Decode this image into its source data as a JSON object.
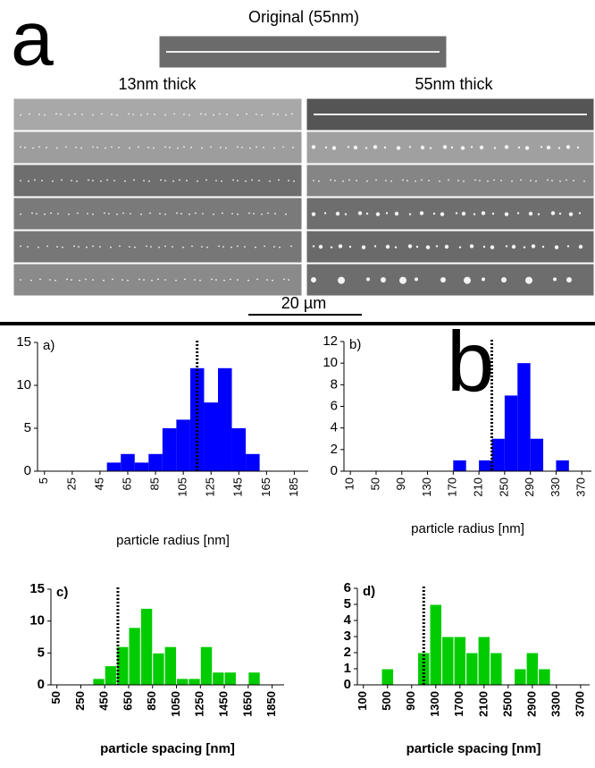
{
  "figure": {
    "label_a": "a",
    "original_title": "Original (55nm)",
    "left_column": "13nm thick",
    "right_column": "55nm thick",
    "scale_bar": "20 µm",
    "label_b": "b"
  },
  "chart_data": [
    {
      "type": "histogram",
      "annotation": "a)",
      "x_label": "particle radius [nm]",
      "color": "#0000ff",
      "bins": [
        50,
        60,
        70,
        80,
        90,
        100,
        110,
        120,
        130,
        140,
        150,
        160
      ],
      "counts": [
        1,
        2,
        1,
        2,
        5,
        6,
        12,
        8,
        12,
        5,
        2
      ],
      "vline": 115,
      "xlim": [
        0,
        195
      ],
      "xticks": [
        5,
        25,
        45,
        65,
        85,
        105,
        125,
        145,
        165,
        185
      ],
      "ylim": [
        0,
        15
      ],
      "yticks": [
        0,
        5,
        10,
        15
      ]
    },
    {
      "type": "histogram",
      "annotation": "b)",
      "x_label": "particle radius [nm]",
      "color": "#0000ff",
      "bins": [
        170,
        190,
        210,
        230,
        250,
        270,
        290,
        310,
        330,
        350
      ],
      "counts": [
        1,
        0,
        1,
        3,
        7,
        10,
        3,
        0,
        1
      ],
      "vline": 230,
      "xlim": [
        0,
        385
      ],
      "xticks": [
        10,
        50,
        90,
        130,
        170,
        210,
        250,
        290,
        330,
        370
      ],
      "ylim": [
        0,
        12
      ],
      "yticks": [
        0,
        2,
        4,
        6,
        8,
        10,
        12
      ]
    },
    {
      "type": "histogram",
      "annotation": "c)",
      "x_label": "particle spacing [nm]",
      "color": "#00cc00",
      "edgecolor": "#ffffff",
      "bins": [
        350,
        450,
        550,
        650,
        750,
        850,
        950,
        1050,
        1150,
        1250,
        1350,
        1450,
        1550,
        1650,
        1750
      ],
      "counts": [
        1,
        3,
        6,
        9,
        12,
        5,
        6,
        1,
        1,
        6,
        2,
        2,
        0,
        2
      ],
      "vline": 560,
      "xlim": [
        0,
        1950
      ],
      "xticks": [
        50,
        250,
        450,
        650,
        850,
        1050,
        1250,
        1450,
        1650,
        1850
      ],
      "ylim": [
        0,
        15
      ],
      "yticks": [
        0,
        5,
        10,
        15
      ]
    },
    {
      "type": "histogram",
      "annotation": "d)",
      "x_label": "particle spacing [nm]",
      "color": "#00cc00",
      "edgecolor": "#ffffff",
      "bins": [
        400,
        600,
        800,
        1000,
        1200,
        1400,
        1600,
        1800,
        2000,
        2200,
        2400,
        2600,
        2800,
        3000,
        3200
      ],
      "counts": [
        1,
        0,
        0,
        2,
        5,
        3,
        3,
        2,
        3,
        2,
        0,
        1,
        2,
        1
      ],
      "vline": 1100,
      "xlim": [
        0,
        3850
      ],
      "xticks": [
        100,
        500,
        900,
        1300,
        1700,
        2100,
        2500,
        2900,
        3300,
        3700
      ],
      "ylim": [
        0,
        6
      ],
      "yticks": [
        0,
        1,
        2,
        3,
        4,
        5,
        6
      ]
    }
  ]
}
